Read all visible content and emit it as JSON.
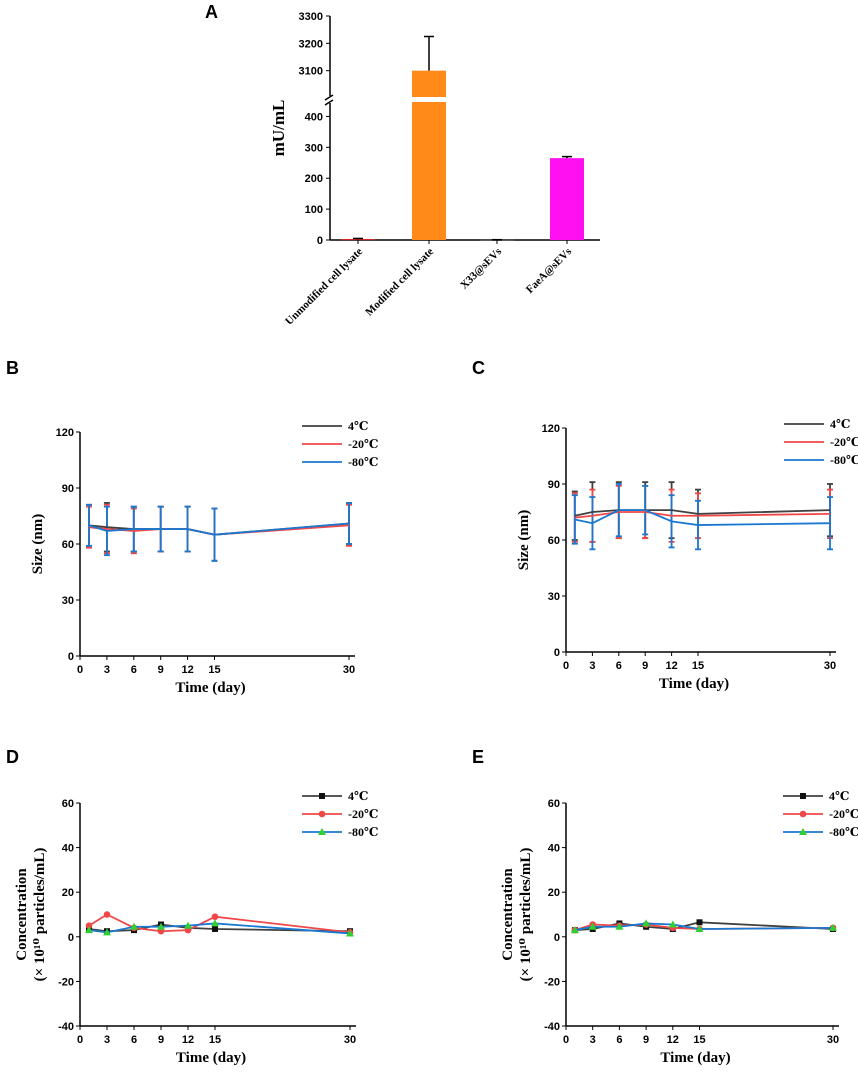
{
  "colors": {
    "black": "#404040",
    "red": "#f04848",
    "blue": "#1a78d0",
    "orange": "#ff8a1a",
    "magenta": "#ff10f0",
    "green": "#30d030"
  },
  "chart_data": [
    {
      "panel": "A",
      "type": "bar",
      "ylabel": "mU/mL",
      "categories": [
        "Unmodified cell lysate",
        "Modified cell lysate",
        "X33@sEVs",
        "FaeA@sEVs"
      ],
      "values": [
        3,
        3100,
        0.5,
        265
      ],
      "errors": [
        2,
        125,
        0.5,
        5
      ],
      "bar_colors": [
        "#e02020",
        "#ff8a1a",
        "#555555",
        "#ff10f0"
      ],
      "axis_break": true,
      "lower_range": [
        0,
        450
      ],
      "upper_range": [
        3000,
        3300
      ],
      "lower_ticks": [
        "0",
        "100",
        "200",
        "300",
        "400"
      ],
      "upper_ticks": [
        "3100",
        "3200",
        "3300"
      ]
    },
    {
      "panel": "B",
      "type": "line",
      "xlabel": "Time (day)",
      "ylabel": "Size (nm)",
      "x": [
        1,
        3,
        6,
        9,
        12,
        15,
        30
      ],
      "xticks": [
        "0",
        "3",
        "6",
        "9",
        "12",
        "15",
        "30"
      ],
      "yticks": [
        "0",
        "30",
        "60",
        "90",
        "120"
      ],
      "ylim": [
        0,
        120
      ],
      "markers": false,
      "series": [
        {
          "name": "4℃",
          "color": "#404040",
          "values": [
            70,
            69,
            68,
            68,
            68,
            65,
            71
          ],
          "errors": [
            11,
            13,
            12,
            12,
            12,
            14,
            11
          ]
        },
        {
          "name": "-20℃",
          "color": "#f04848",
          "values": [
            69,
            68,
            67,
            68,
            68,
            65,
            70
          ],
          "errors": [
            11,
            13,
            12,
            12,
            12,
            14,
            11
          ]
        },
        {
          "name": "-80℃",
          "color": "#1a78d0",
          "values": [
            70,
            67,
            68,
            68,
            68,
            65,
            71
          ],
          "errors": [
            11,
            13,
            12,
            12,
            12,
            14,
            11
          ]
        }
      ]
    },
    {
      "panel": "C",
      "type": "line",
      "xlabel": "Time (day)",
      "ylabel": "Size (nm)",
      "x": [
        1,
        3,
        6,
        9,
        12,
        15,
        30
      ],
      "xticks": [
        "0",
        "3",
        "6",
        "9",
        "12",
        "15",
        "30"
      ],
      "yticks": [
        "0",
        "30",
        "60",
        "90",
        "120"
      ],
      "ylim": [
        0,
        120
      ],
      "markers": false,
      "series": [
        {
          "name": "4℃",
          "color": "#404040",
          "values": [
            73,
            75,
            76,
            76,
            76,
            74,
            76
          ],
          "errors": [
            13,
            16,
            15,
            15,
            15,
            13,
            14
          ]
        },
        {
          "name": "-20℃",
          "color": "#f04848",
          "values": [
            72,
            73,
            75,
            75,
            73,
            73,
            74
          ],
          "errors": [
            13,
            14,
            14,
            14,
            14,
            12,
            13
          ]
        },
        {
          "name": "-80℃",
          "color": "#1a78d0",
          "values": [
            71,
            69,
            76,
            76,
            70,
            68,
            69
          ],
          "errors": [
            13,
            14,
            14,
            13,
            14,
            13,
            14
          ]
        }
      ]
    },
    {
      "panel": "D",
      "type": "line",
      "xlabel": "Time (day)",
      "ylabel_line1": "Concentration",
      "ylabel_line2": "(× 10¹⁰ particles/mL)",
      "x": [
        1,
        3,
        6,
        9,
        12,
        15,
        30
      ],
      "xticks": [
        "0",
        "3",
        "6",
        "9",
        "12",
        "15",
        "30"
      ],
      "yticks": [
        "-40",
        "-20",
        "0",
        "20",
        "40",
        "60"
      ],
      "ylim": [
        -40,
        60
      ],
      "markers": true,
      "series": [
        {
          "name": "4℃",
          "color": "#404040",
          "marker": "square",
          "values": [
            3.5,
            2.5,
            3,
            5.5,
            4,
            3.5,
            2.5
          ]
        },
        {
          "name": "-20℃",
          "color": "#f04848",
          "marker": "circle",
          "values": [
            5,
            10,
            4,
            2.5,
            3,
            9,
            2
          ]
        },
        {
          "name": "-80℃",
          "color": "#1a78d0",
          "marker": "triangle",
          "values": [
            3,
            2,
            4.5,
            4.5,
            5,
            6,
            1.5
          ]
        }
      ]
    },
    {
      "panel": "E",
      "type": "line",
      "xlabel": "Time (day)",
      "ylabel_line1": "Concentration",
      "ylabel_line2": "(× 10¹⁰ particles/mL)",
      "x": [
        1,
        3,
        6,
        9,
        12,
        15,
        30
      ],
      "xticks": [
        "0",
        "3",
        "6",
        "9",
        "12",
        "15",
        "30"
      ],
      "yticks": [
        "-40",
        "-20",
        "0",
        "20",
        "40",
        "60"
      ],
      "ylim": [
        -40,
        60
      ],
      "markers": true,
      "series": [
        {
          "name": "4℃",
          "color": "#404040",
          "marker": "square",
          "values": [
            3,
            3.5,
            6,
            4.5,
            3.5,
            6.5,
            3.5
          ]
        },
        {
          "name": "-20℃",
          "color": "#f04848",
          "marker": "circle",
          "values": [
            3,
            5.5,
            5,
            5.5,
            4,
            3.5,
            4
          ]
        },
        {
          "name": "-80℃",
          "color": "#1a78d0",
          "marker": "triangle",
          "values": [
            3,
            4.5,
            4.5,
            6,
            5.5,
            3.5,
            4
          ]
        }
      ]
    }
  ]
}
